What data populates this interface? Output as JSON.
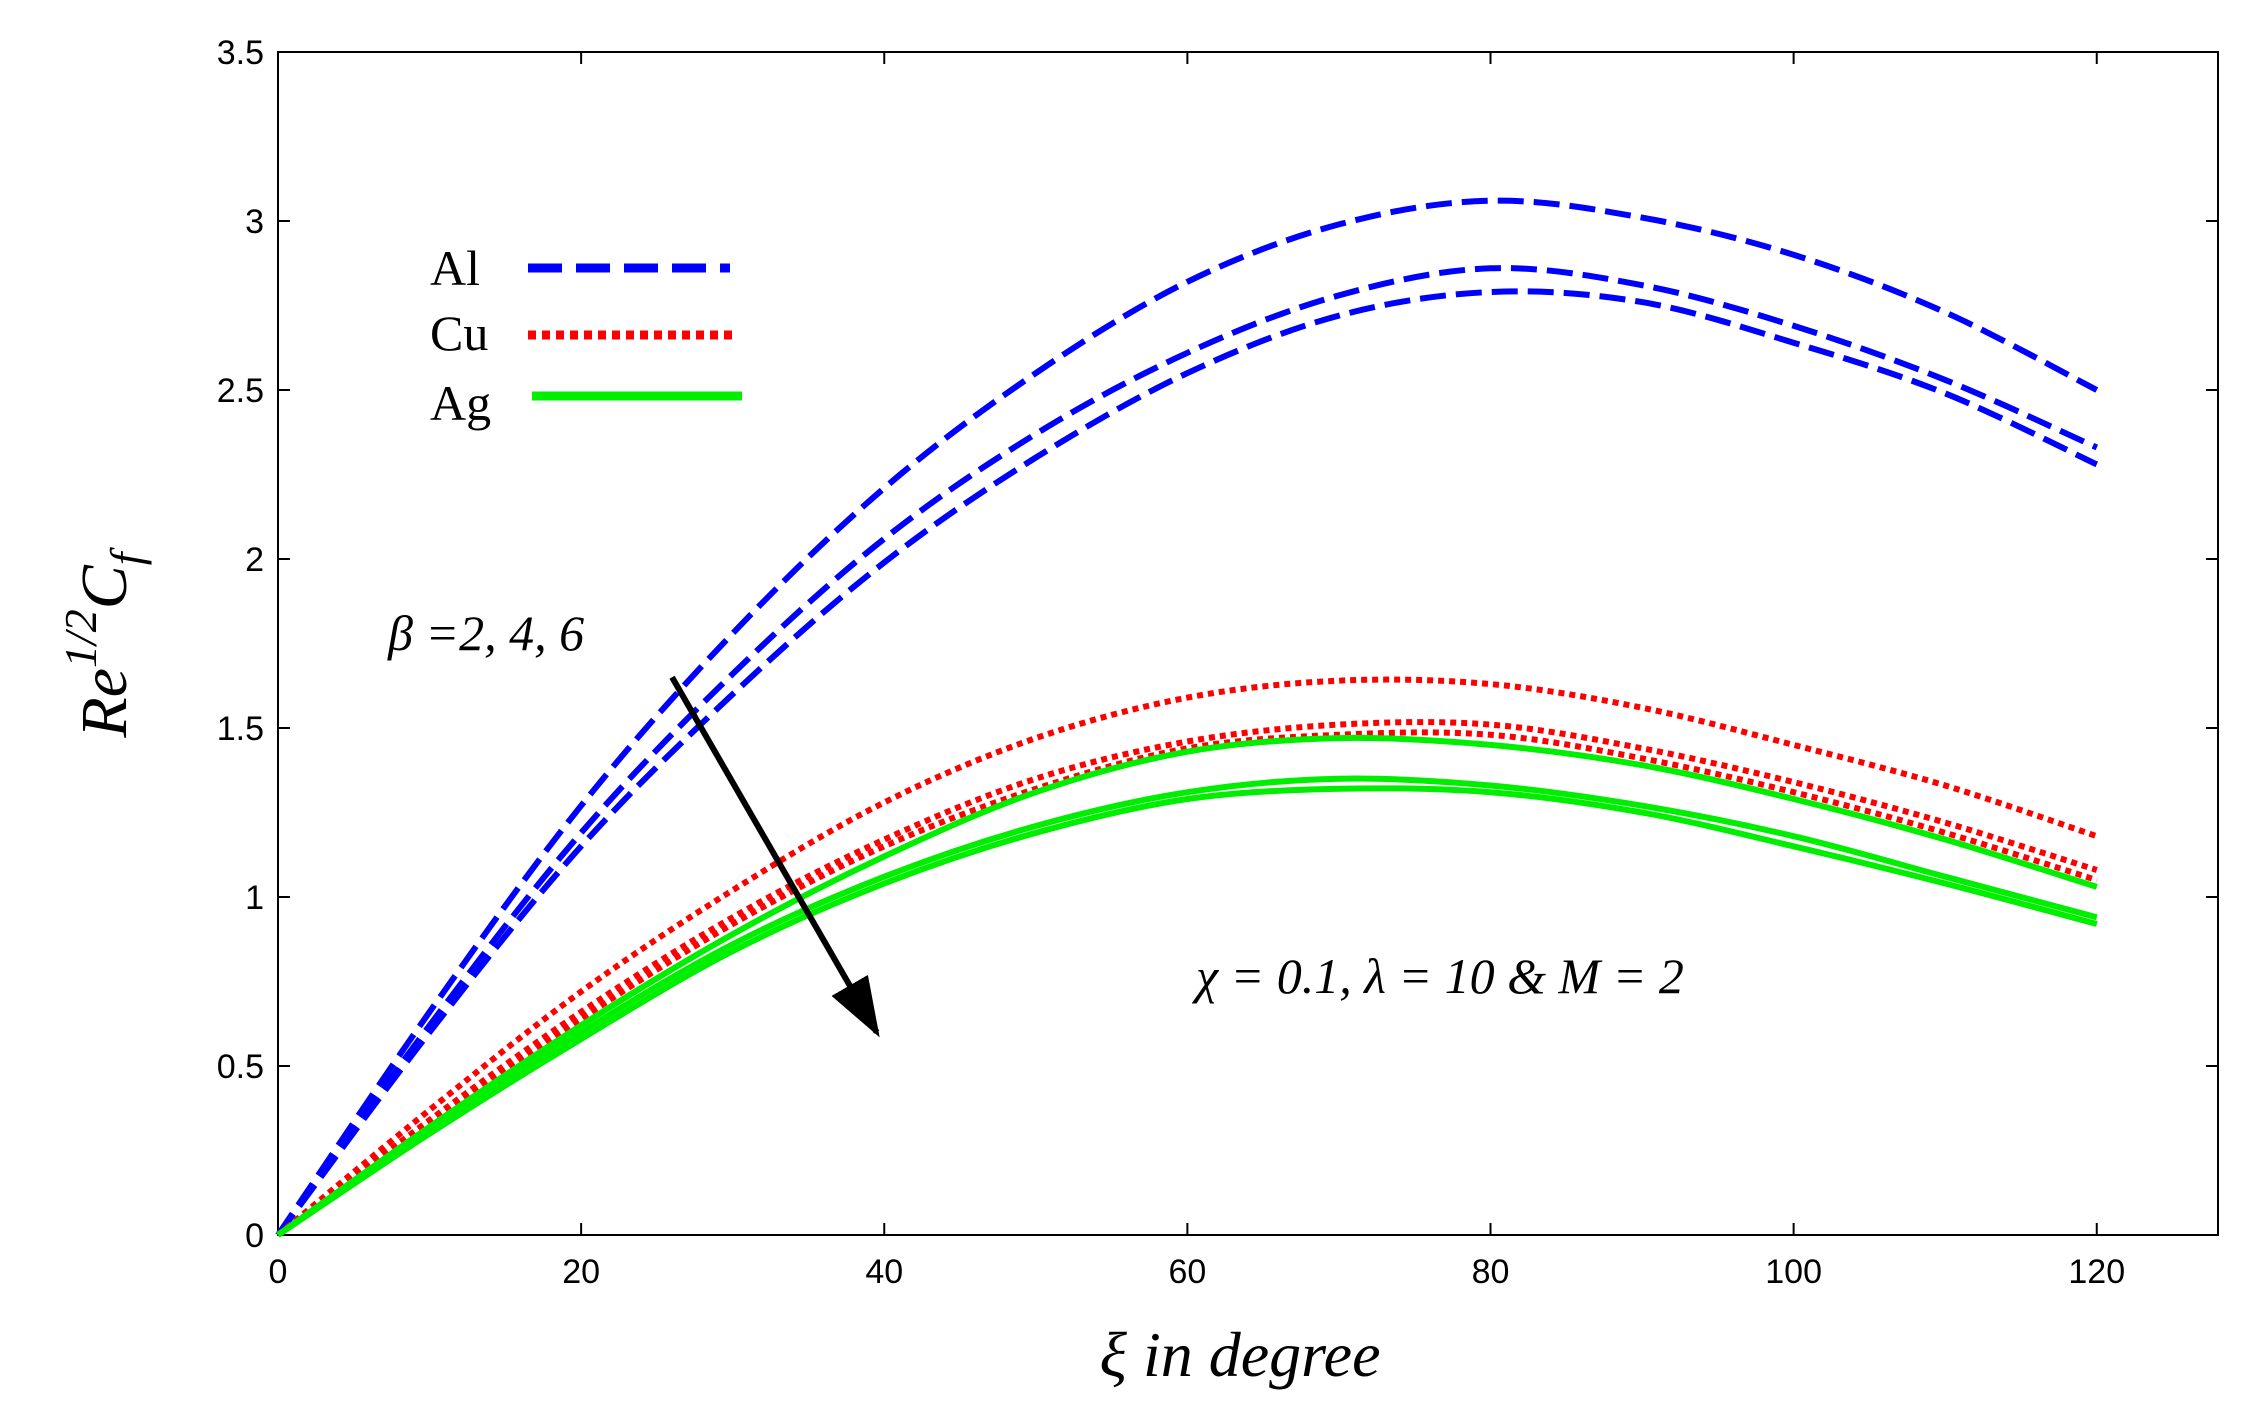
{
  "chart_data": {
    "type": "line",
    "title": "",
    "xlabel": "ξ in degree",
    "ylabel": {
      "base": "Re",
      "exponent": "1/2",
      "symbol": "C",
      "subscript": "f"
    },
    "xlim": [
      0,
      128
    ],
    "ylim": [
      0,
      3.5
    ],
    "xticks": [
      "0",
      "20",
      "40",
      "60",
      "80",
      "100",
      "120"
    ],
    "yticks": [
      "0",
      "0.5",
      "1",
      "1.5",
      "2",
      "2.5",
      "3",
      "3.5"
    ],
    "grid": false,
    "legend": [
      {
        "label": "Al",
        "color": "#0000ff",
        "style": "dashed"
      },
      {
        "label": "Cu",
        "color": "#ff0000",
        "style": "dotted"
      },
      {
        "label": "Ag",
        "color": "#00ee00",
        "style": "solid"
      }
    ],
    "x": [
      0,
      10,
      20,
      30,
      40,
      50,
      60,
      70,
      80,
      90,
      100,
      110,
      120
    ],
    "series": [
      {
        "name": "Al, β = 2",
        "fluid": "Al",
        "beta": 2,
        "values": [
          0,
          0.66,
          1.27,
          1.78,
          2.21,
          2.55,
          2.82,
          2.99,
          3.06,
          3.01,
          2.9,
          2.73,
          2.5
        ]
      },
      {
        "name": "Al, β = 4",
        "fluid": "Al",
        "beta": 4,
        "values": [
          0,
          0.62,
          1.19,
          1.66,
          2.06,
          2.37,
          2.61,
          2.78,
          2.86,
          2.81,
          2.69,
          2.53,
          2.33
        ]
      },
      {
        "name": "Al, β = 6",
        "fluid": "Al",
        "beta": 6,
        "values": [
          0,
          0.6,
          1.15,
          1.6,
          1.99,
          2.3,
          2.55,
          2.72,
          2.79,
          2.76,
          2.64,
          2.49,
          2.28
        ]
      },
      {
        "name": "Cu, β = 2",
        "fluid": "Cu",
        "beta": 2,
        "values": [
          0,
          0.37,
          0.72,
          1.02,
          1.28,
          1.47,
          1.59,
          1.64,
          1.63,
          1.56,
          1.45,
          1.33,
          1.18
        ]
      },
      {
        "name": "Cu, β = 4",
        "fluid": "Cu",
        "beta": 4,
        "values": [
          0,
          0.34,
          0.66,
          0.94,
          1.17,
          1.35,
          1.46,
          1.51,
          1.51,
          1.44,
          1.34,
          1.22,
          1.08
        ]
      },
      {
        "name": "Cu, β = 6",
        "fluid": "Cu",
        "beta": 6,
        "values": [
          0,
          0.33,
          0.64,
          0.92,
          1.15,
          1.32,
          1.44,
          1.48,
          1.48,
          1.41,
          1.31,
          1.19,
          1.05
        ]
      },
      {
        "name": "Ag, β = 2",
        "fluid": "Ag",
        "beta": 2,
        "values": [
          0,
          0.32,
          0.62,
          0.89,
          1.12,
          1.31,
          1.43,
          1.47,
          1.45,
          1.39,
          1.29,
          1.17,
          1.03
        ]
      },
      {
        "name": "Ag, β = 4",
        "fluid": "Ag",
        "beta": 4,
        "values": [
          0,
          0.31,
          0.6,
          0.86,
          1.06,
          1.21,
          1.31,
          1.35,
          1.33,
          1.27,
          1.18,
          1.06,
          0.94
        ]
      },
      {
        "name": "Ag, β = 6",
        "fluid": "Ag",
        "beta": 6,
        "values": [
          0,
          0.3,
          0.58,
          0.84,
          1.04,
          1.19,
          1.29,
          1.32,
          1.31,
          1.25,
          1.15,
          1.04,
          0.92
        ]
      }
    ],
    "annotations": {
      "beta": {
        "symbol": "β",
        "text": " =2, 4, 6",
        "arrow_from": [
          26,
          1.65
        ],
        "arrow_to": [
          39.5,
          0.6
        ]
      },
      "params": {
        "chi": "χ",
        "chi_val": " = 0.1, ",
        "lambda": "λ",
        "lambda_val": " = 10 & M = 2"
      }
    }
  }
}
